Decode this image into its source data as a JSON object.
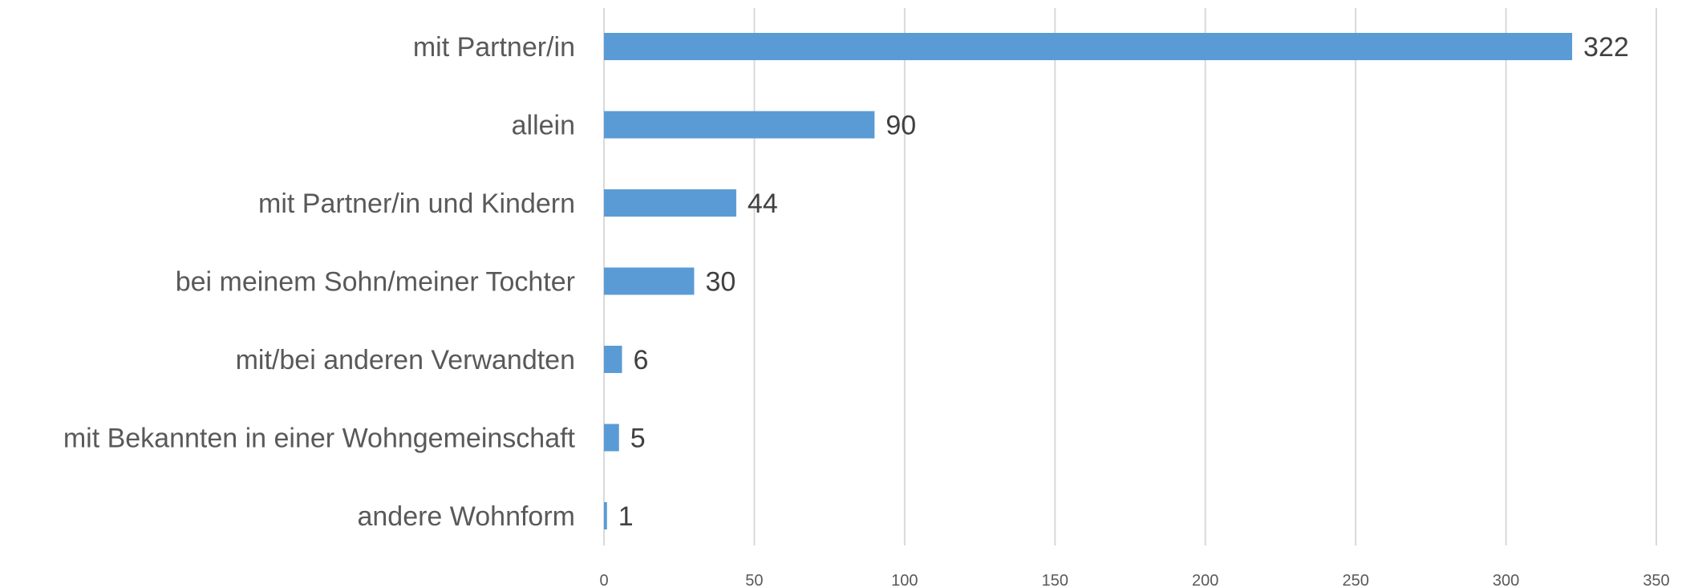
{
  "chart_data": {
    "type": "bar",
    "orientation": "horizontal",
    "categories": [
      "mit Partner/in",
      "allein",
      "mit Partner/in und Kindern",
      "bei meinem Sohn/meiner Tochter",
      "mit/bei anderen Verwandten",
      "mit Bekannten in einer Wohngemeinschaft",
      "andere Wohnform"
    ],
    "values": [
      322,
      90,
      44,
      30,
      6,
      5,
      1
    ],
    "xlim": [
      0,
      350
    ],
    "xticks": [
      0,
      50,
      100,
      150,
      200,
      250,
      300,
      350
    ],
    "grid": true,
    "data_labels": true,
    "bar_color": "#5B9BD5"
  }
}
